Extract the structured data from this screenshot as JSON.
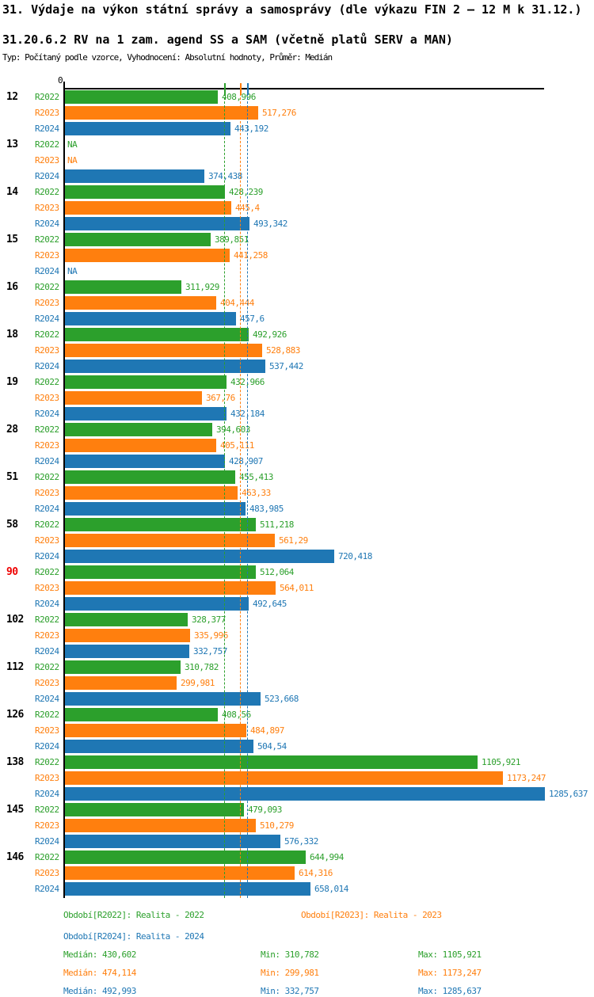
{
  "header": {
    "title": "31. Výdaje na výkon státní správy a samosprávy (dle výkazu FIN 2 – 12 M k 31.12.)",
    "subtitle": "31.20.6.2 RV na 1 zam. agend SS a SAM (včetně platů SERV a MAN)",
    "meta": "Typ: Počítaný podle vzorce, Vyhodnocení: Absolutní hodnoty, Průměr: Medián"
  },
  "colors": {
    "series": [
      "#2CA02C",
      "#FF7F0E",
      "#1F77B4"
    ],
    "axis": "#000000",
    "group_label": "#000000",
    "highlight_group_label": "#EE0000",
    "background": "#FFFFFF"
  },
  "chart_data": {
    "type": "bar",
    "orientation": "horizontal",
    "title": "31.20.6.2 RV na 1 zam. agend SS a SAM (včetně platů SERV a MAN)",
    "series_names": [
      "R2022",
      "R2023",
      "R2024"
    ],
    "axis": {
      "zero_label": "0",
      "min": 0,
      "max": 1285.637,
      "grid": false
    },
    "median_lines": [
      {
        "series": "R2022",
        "value": 430.602
      },
      {
        "series": "R2023",
        "value": 474.114
      },
      {
        "series": "R2024",
        "value": 492.993
      }
    ],
    "groups": [
      {
        "id": "12",
        "highlight": false,
        "bars": [
          {
            "value": 408.996,
            "label": "408,996"
          },
          {
            "value": 517.276,
            "label": "517,276"
          },
          {
            "value": 443.192,
            "label": "443,192"
          }
        ]
      },
      {
        "id": "13",
        "highlight": false,
        "bars": [
          {
            "value": null,
            "label": "NA"
          },
          {
            "value": null,
            "label": "NA"
          },
          {
            "value": 374.438,
            "label": "374,438"
          }
        ]
      },
      {
        "id": "14",
        "highlight": false,
        "bars": [
          {
            "value": 428.239,
            "label": "428,239"
          },
          {
            "value": 445.4,
            "label": "445,4"
          },
          {
            "value": 493.342,
            "label": "493,342"
          }
        ]
      },
      {
        "id": "15",
        "highlight": false,
        "bars": [
          {
            "value": 389.851,
            "label": "389,851"
          },
          {
            "value": 441.258,
            "label": "441,258"
          },
          {
            "value": null,
            "label": "NA"
          }
        ]
      },
      {
        "id": "16",
        "highlight": false,
        "bars": [
          {
            "value": 311.929,
            "label": "311,929"
          },
          {
            "value": 404.444,
            "label": "404,444"
          },
          {
            "value": 457.6,
            "label": "457,6"
          }
        ]
      },
      {
        "id": "18",
        "highlight": false,
        "bars": [
          {
            "value": 492.926,
            "label": "492,926"
          },
          {
            "value": 528.883,
            "label": "528,883"
          },
          {
            "value": 537.442,
            "label": "537,442"
          }
        ]
      },
      {
        "id": "19",
        "highlight": false,
        "bars": [
          {
            "value": 432.966,
            "label": "432,966"
          },
          {
            "value": 367.76,
            "label": "367,76"
          },
          {
            "value": 432.184,
            "label": "432,184"
          }
        ]
      },
      {
        "id": "28",
        "highlight": false,
        "bars": [
          {
            "value": 394.603,
            "label": "394,603"
          },
          {
            "value": 405.111,
            "label": "405,111"
          },
          {
            "value": 428.907,
            "label": "428,907"
          }
        ]
      },
      {
        "id": "51",
        "highlight": false,
        "bars": [
          {
            "value": 455.413,
            "label": "455,413"
          },
          {
            "value": 463.33,
            "label": "463,33"
          },
          {
            "value": 483.985,
            "label": "483,985"
          }
        ]
      },
      {
        "id": "58",
        "highlight": false,
        "bars": [
          {
            "value": 511.218,
            "label": "511,218"
          },
          {
            "value": 561.29,
            "label": "561,29"
          },
          {
            "value": 720.418,
            "label": "720,418"
          }
        ]
      },
      {
        "id": "90",
        "highlight": true,
        "bars": [
          {
            "value": 512.064,
            "label": "512,064"
          },
          {
            "value": 564.011,
            "label": "564,011"
          },
          {
            "value": 492.645,
            "label": "492,645"
          }
        ]
      },
      {
        "id": "102",
        "highlight": false,
        "bars": [
          {
            "value": 328.377,
            "label": "328,377"
          },
          {
            "value": 335.996,
            "label": "335,996"
          },
          {
            "value": 332.757,
            "label": "332,757"
          }
        ]
      },
      {
        "id": "112",
        "highlight": false,
        "bars": [
          {
            "value": 310.782,
            "label": "310,782"
          },
          {
            "value": 299.981,
            "label": "299,981"
          },
          {
            "value": 523.668,
            "label": "523,668"
          }
        ]
      },
      {
        "id": "126",
        "highlight": false,
        "bars": [
          {
            "value": 408.56,
            "label": "408,56"
          },
          {
            "value": 484.897,
            "label": "484,897"
          },
          {
            "value": 504.54,
            "label": "504,54"
          }
        ]
      },
      {
        "id": "138",
        "highlight": false,
        "bars": [
          {
            "value": 1105.921,
            "label": "1105,921"
          },
          {
            "value": 1173.247,
            "label": "1173,247"
          },
          {
            "value": 1285.637,
            "label": "1285,637"
          }
        ]
      },
      {
        "id": "145",
        "highlight": false,
        "bars": [
          {
            "value": 479.093,
            "label": "479,093"
          },
          {
            "value": 510.279,
            "label": "510,279"
          },
          {
            "value": 576.332,
            "label": "576,332"
          }
        ]
      },
      {
        "id": "146",
        "highlight": false,
        "bars": [
          {
            "value": 644.994,
            "label": "644,994"
          },
          {
            "value": 614.316,
            "label": "614,316"
          },
          {
            "value": 658.014,
            "label": "658,014"
          }
        ]
      }
    ]
  },
  "legend": {
    "items": [
      {
        "label": "Období[R2022]: Realita - 2022"
      },
      {
        "label": "Období[R2023]: Realita - 2023"
      },
      {
        "label": "Období[R2024]: Realita - 2024"
      }
    ]
  },
  "stats": {
    "rows": [
      {
        "median": "Medián: 430,602",
        "min": "Min: 310,782",
        "max": "Max: 1105,921"
      },
      {
        "median": "Medián: 474,114",
        "min": "Min: 299,981",
        "max": "Max: 1173,247"
      },
      {
        "median": "Medián: 492,993",
        "min": "Min: 332,757",
        "max": "Max: 1285,637"
      }
    ]
  }
}
